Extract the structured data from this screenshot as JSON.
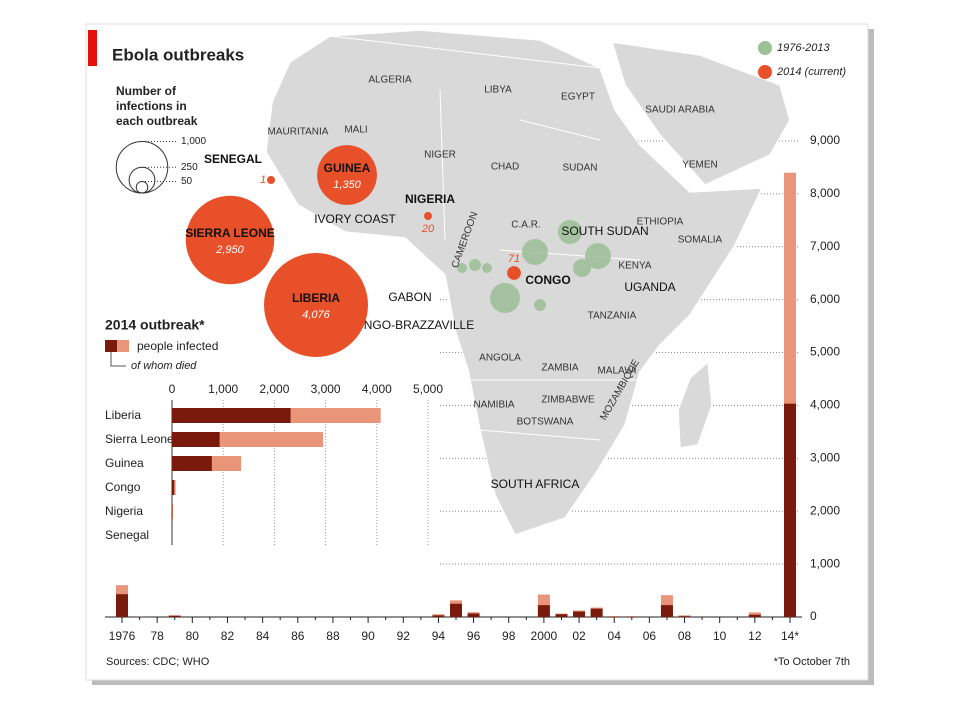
{
  "header": {
    "title": "Ebola outbreaks"
  },
  "period_legend": [
    {
      "name": "1976-2013",
      "color": "#9dbf97"
    },
    {
      "name": "2014 (current)",
      "color": "#e8502a"
    }
  ],
  "size_legend": {
    "title": [
      "Number of",
      "infections in",
      "each outbreak"
    ],
    "sizes": [
      {
        "value": 1000,
        "label": "1,000"
      },
      250,
      50
    ]
  },
  "map": {
    "countries": [
      "ALGERIA",
      "LIBYA",
      "EGYPT",
      "SAUDI ARABIA",
      "YEMEN",
      "MAURITANIA",
      "MALI",
      "NIGER",
      "CHAD",
      "SUDAN",
      "ETHIOPIA",
      "SOMALIA",
      "SOUTH SUDAN",
      "C.A.R.",
      "CAMEROON",
      "IVORY COAST",
      "KENYA",
      "UGANDA",
      "TANZANIA",
      "GABON",
      "CONGO-BRAZZAVILLE",
      "ANGOLA",
      "ZAMBIA",
      "MALAWI",
      "MOZAMBIQUE",
      "ZIMBABWE",
      "NAMIBIA",
      "BOTSWANA",
      "SOUTH AFRICA"
    ],
    "outbreaks_2014": [
      {
        "name": "GUINEA",
        "value": 1350,
        "value_label": "1,350"
      },
      {
        "name": "SIERRA LEONE",
        "value": 2950,
        "value_label": "2,950"
      },
      {
        "name": "LIBERIA",
        "value": 4076,
        "value_label": "4,076"
      },
      {
        "name": "NIGERIA",
        "value": 20
      },
      {
        "name": "SENEGAL",
        "value": 1
      },
      {
        "name": "CONGO",
        "value": 71
      }
    ]
  },
  "chart_data": [
    {
      "type": "hbar",
      "title": "2014 outbreak*",
      "categories": [
        "Liberia",
        "Sierra Leone",
        "Guinea",
        "Congo",
        "Nigeria",
        "Senegal"
      ],
      "series": [
        {
          "name": "people infected",
          "color": "#e8957a",
          "values": [
            4076,
            2950,
            1350,
            71,
            20,
            1
          ]
        },
        {
          "name": "of whom died",
          "color": "#7a1a0c",
          "values": [
            2316,
            930,
            778,
            43,
            8,
            0
          ]
        }
      ],
      "xlim": [
        0,
        5000
      ],
      "xticks": [
        0,
        {
          "value": 1000,
          "label": "1,000"
        },
        {
          "value": 2000,
          "label": "2,000"
        },
        {
          "value": 3000,
          "label": "3,000"
        },
        {
          "value": 4000,
          "label": "4,000"
        },
        {
          "value": 5000,
          "label": "5,000"
        }
      ],
      "grid": true
    },
    {
      "type": "bar",
      "categories": [
        "1976",
        null,
        "78",
        null,
        "80",
        null,
        "82",
        null,
        "84",
        null,
        "86",
        null,
        "88",
        null,
        "90",
        null,
        "92",
        null,
        "94",
        null,
        "96",
        null,
        "98",
        null,
        "2000",
        null,
        "02",
        null,
        "04",
        null,
        "06",
        null,
        "08",
        null,
        "10",
        null,
        "12",
        null,
        "14*"
      ],
      "series": [
        {
          "color": "#e8957a",
          "values": [
            602,
            1,
            0,
            34,
            0,
            0,
            0,
            0,
            0,
            0,
            0,
            0,
            0,
            0,
            0,
            0,
            0,
            0,
            52,
            315,
            91,
            0,
            0,
            0,
            425,
            65,
            124,
            178,
            17,
            12,
            0,
            413,
            32,
            0,
            0,
            0,
            88,
            0,
            8400
          ]
        },
        {
          "color": "#7a1a0c",
          "values": [
            431,
            1,
            0,
            22,
            0,
            0,
            0,
            0,
            0,
            0,
            0,
            0,
            0,
            0,
            0,
            0,
            0,
            0,
            31,
            250,
            66,
            0,
            0,
            0,
            224,
            53,
            103,
            157,
            7,
            10,
            0,
            224,
            15,
            0,
            0,
            0,
            43,
            0,
            4033
          ]
        }
      ],
      "ylim": [
        0,
        9000
      ],
      "yticks": [
        0,
        {
          "value": 1000,
          "label": "1,000"
        },
        {
          "value": 2000,
          "label": "2,000"
        },
        {
          "value": 3000,
          "label": "3,000"
        },
        {
          "value": 4000,
          "label": "4,000"
        },
        {
          "value": 5000,
          "label": "5,000"
        },
        {
          "value": 6000,
          "label": "6,000"
        },
        {
          "value": 7000,
          "label": "7,000"
        },
        {
          "value": 8000,
          "label": "8,000"
        },
        {
          "value": 9000,
          "label": "9,000"
        }
      ],
      "grid": true
    }
  ],
  "footer": {
    "sources": "Sources: CDC; WHO",
    "note": "*To October 7th"
  }
}
